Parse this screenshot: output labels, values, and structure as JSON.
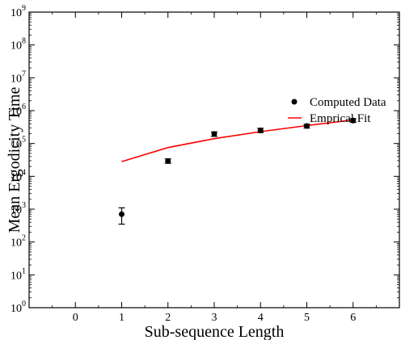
{
  "chart_data": {
    "type": "scatter",
    "xlabel": "Sub-sequence Length",
    "ylabel": "Mean Ergodicity Time",
    "xlim": [
      -1,
      7
    ],
    "ylim_log10": [
      0,
      9
    ],
    "y_scale": "log",
    "grid": false,
    "legend_placement": "top-right",
    "x_ticks": [
      0,
      1,
      2,
      3,
      4,
      5,
      6
    ],
    "y_ticks": [
      {
        "value": 1,
        "base": "10",
        "exp": "0"
      },
      {
        "value": 10,
        "base": "10",
        "exp": "1"
      },
      {
        "value": 100,
        "base": "10",
        "exp": "2"
      },
      {
        "value": 1000,
        "base": "10",
        "exp": "3"
      },
      {
        "value": 10000,
        "base": "10",
        "exp": "4"
      },
      {
        "value": 100000,
        "base": "10",
        "exp": "5"
      },
      {
        "value": 1000000,
        "base": "10",
        "exp": "6"
      },
      {
        "value": 10000000,
        "base": "10",
        "exp": "7"
      },
      {
        "value": 100000000,
        "base": "10",
        "exp": "8"
      },
      {
        "value": 1000000000,
        "base": "10",
        "exp": "9"
      }
    ],
    "series": [
      {
        "name": "Computed Data",
        "kind": "points_with_error",
        "color": "#000000",
        "points": [
          {
            "x": 1,
            "y": 700,
            "ylow": 350,
            "yhigh": 1100
          },
          {
            "x": 2,
            "y": 29000,
            "ylow": 25000,
            "yhigh": 34000
          },
          {
            "x": 3,
            "y": 195000,
            "ylow": 165000,
            "yhigh": 225000
          },
          {
            "x": 4,
            "y": 250000,
            "ylow": 215000,
            "yhigh": 290000
          },
          {
            "x": 5,
            "y": 340000,
            "ylow": 295000,
            "yhigh": 385000
          },
          {
            "x": 6,
            "y": 500000,
            "ylow": 440000,
            "yhigh": 570000
          }
        ]
      },
      {
        "name": "Emprical Fit",
        "kind": "line",
        "color": "#ff0000",
        "points": [
          {
            "x": 1,
            "y": 28000
          },
          {
            "x": 2,
            "y": 75000
          },
          {
            "x": 3,
            "y": 140000
          },
          {
            "x": 4,
            "y": 230000
          },
          {
            "x": 5,
            "y": 350000
          },
          {
            "x": 6,
            "y": 520000
          }
        ]
      }
    ]
  }
}
